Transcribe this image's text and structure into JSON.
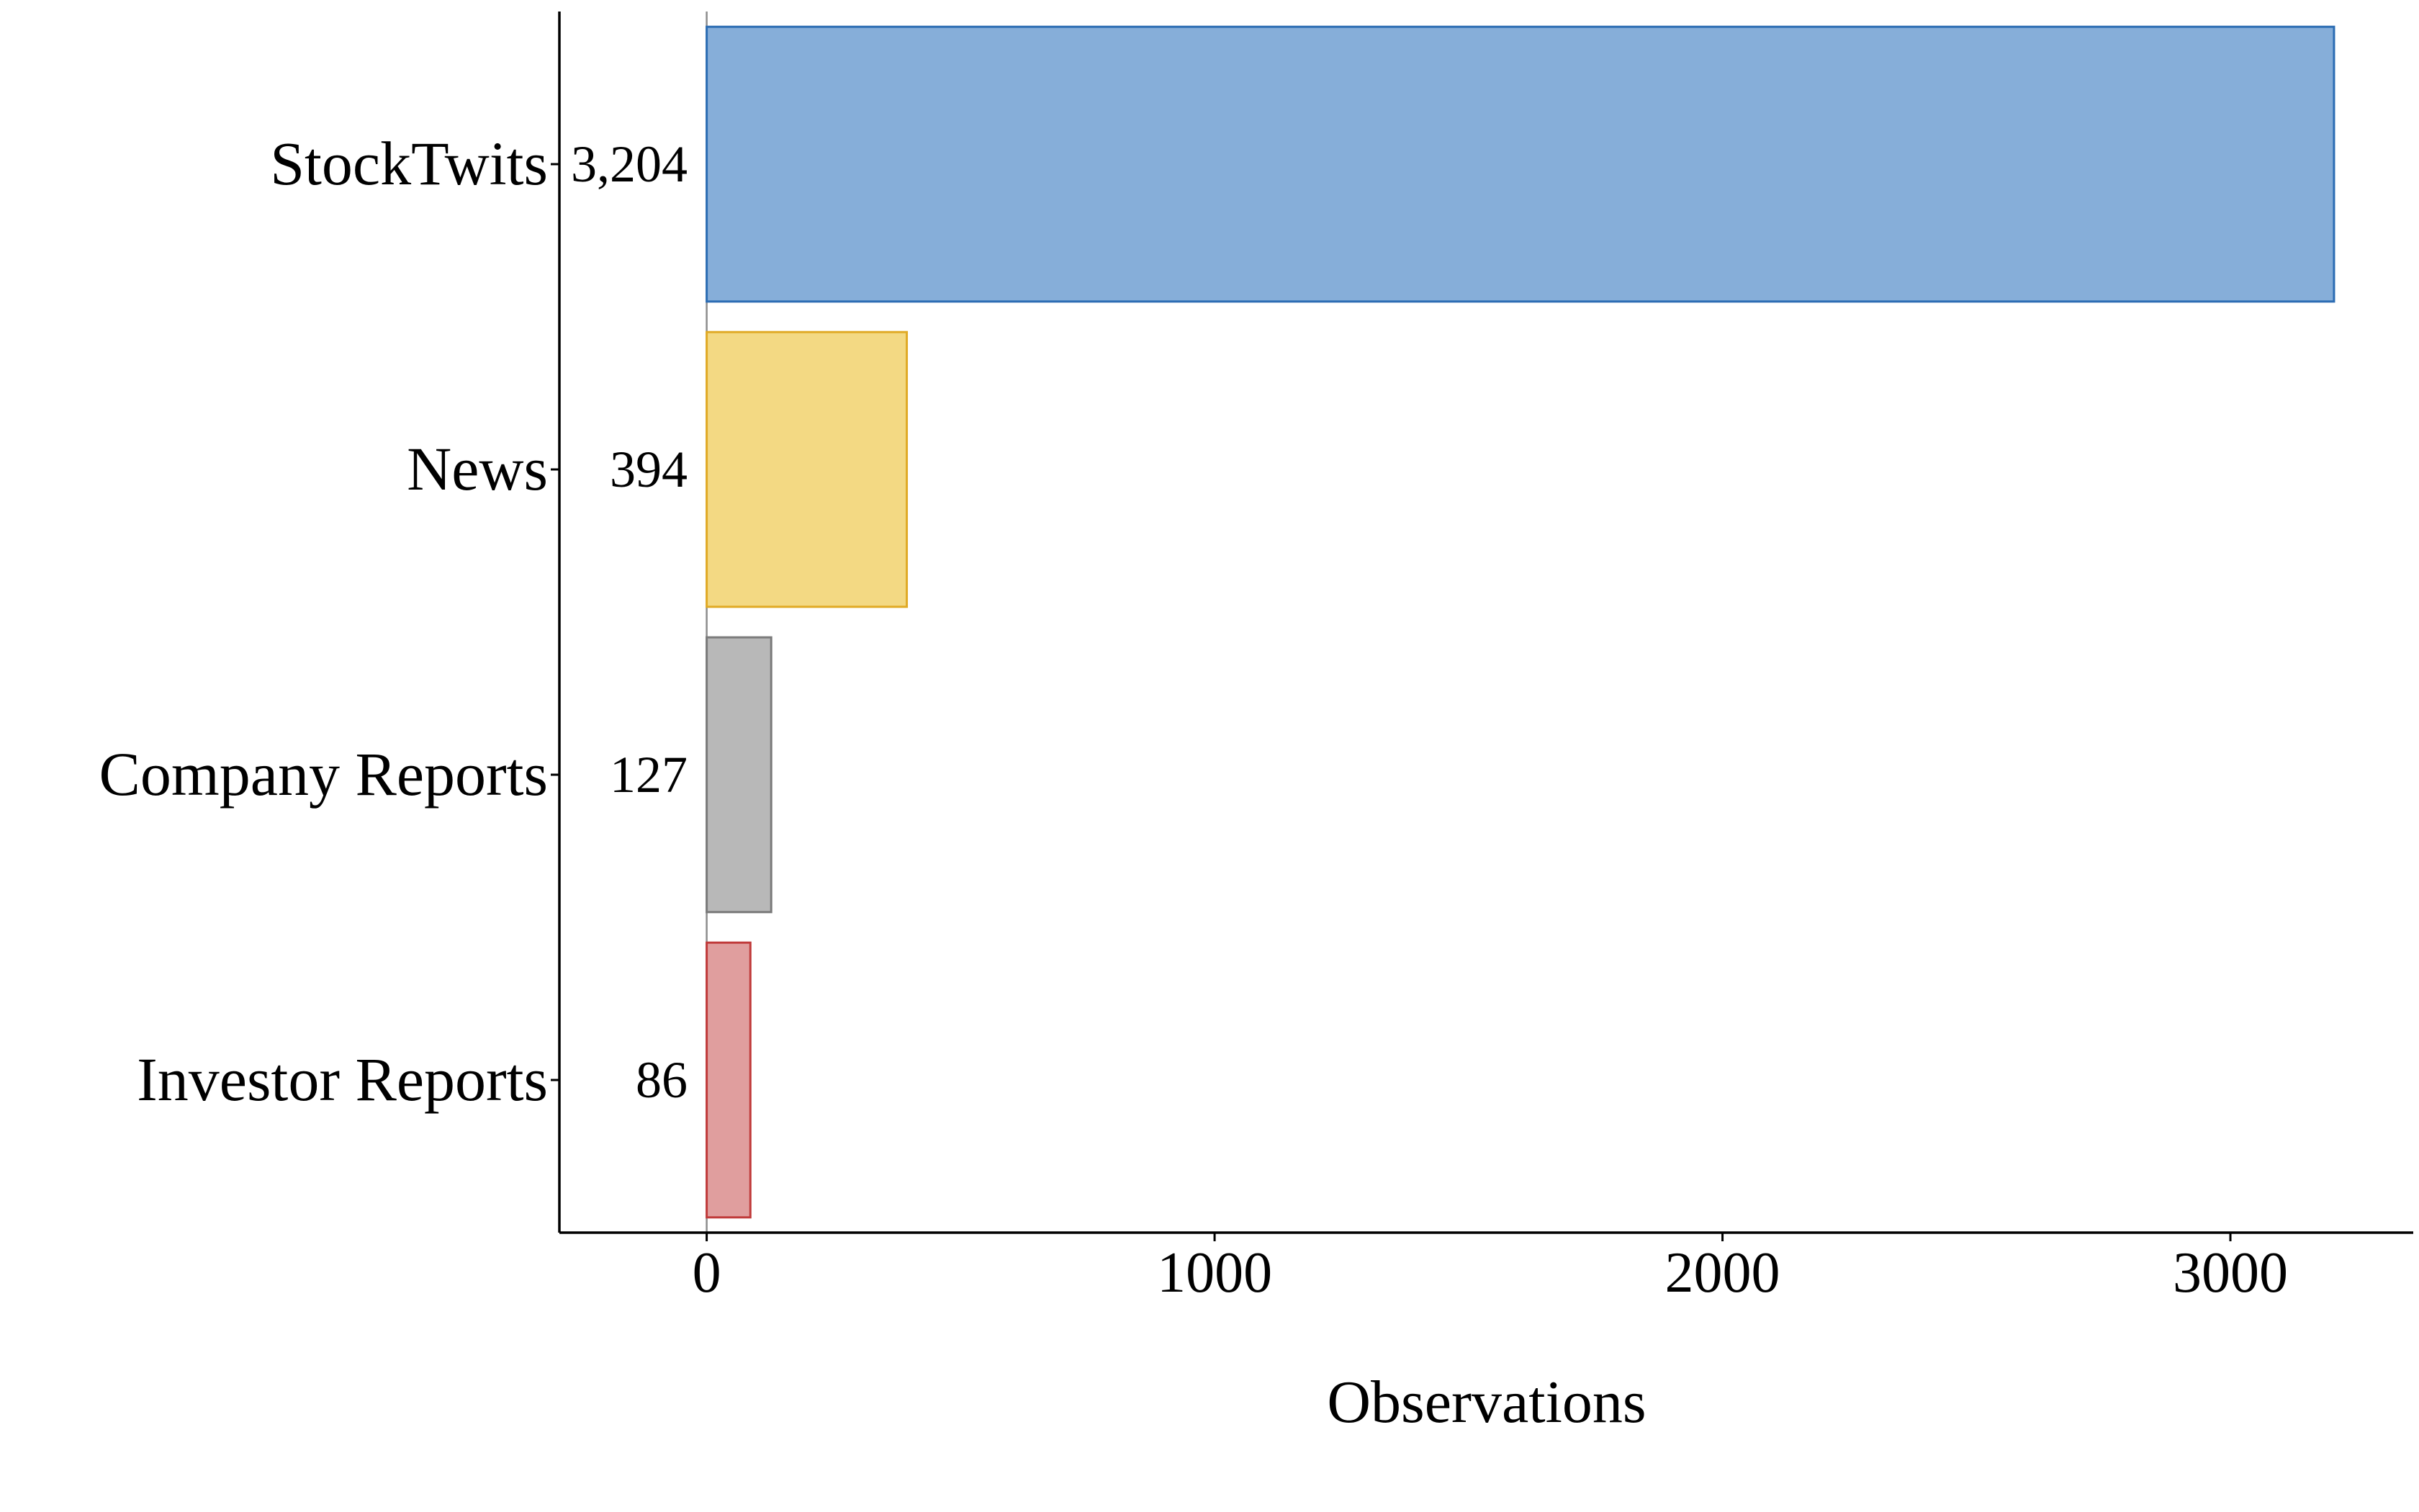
{
  "chart_data": {
    "type": "bar",
    "orientation": "horizontal",
    "categories": [
      "StockTwits",
      "News",
      "Company Reports",
      "Investor Reports"
    ],
    "values": [
      3204,
      394,
      127,
      86
    ],
    "value_labels": [
      "3,204",
      "394",
      "127",
      "86"
    ],
    "title": "",
    "xlabel": "Observations",
    "ylabel": "",
    "xlim": [
      -290,
      3360
    ],
    "xticks": [
      0,
      1000,
      2000,
      3000
    ],
    "xtick_labels": [
      "0",
      "1000",
      "2000",
      "3000"
    ],
    "grid": false,
    "colors": {
      "fills": [
        "#86aed9",
        "#f3d983",
        "#b8b8b8",
        "#e09e9e"
      ],
      "strokes": [
        "#2b6cb3",
        "#e0aa25",
        "#7a7a7a",
        "#c03a3a"
      ],
      "axis": "#000000",
      "zero_line": "#8c8c8c"
    }
  }
}
